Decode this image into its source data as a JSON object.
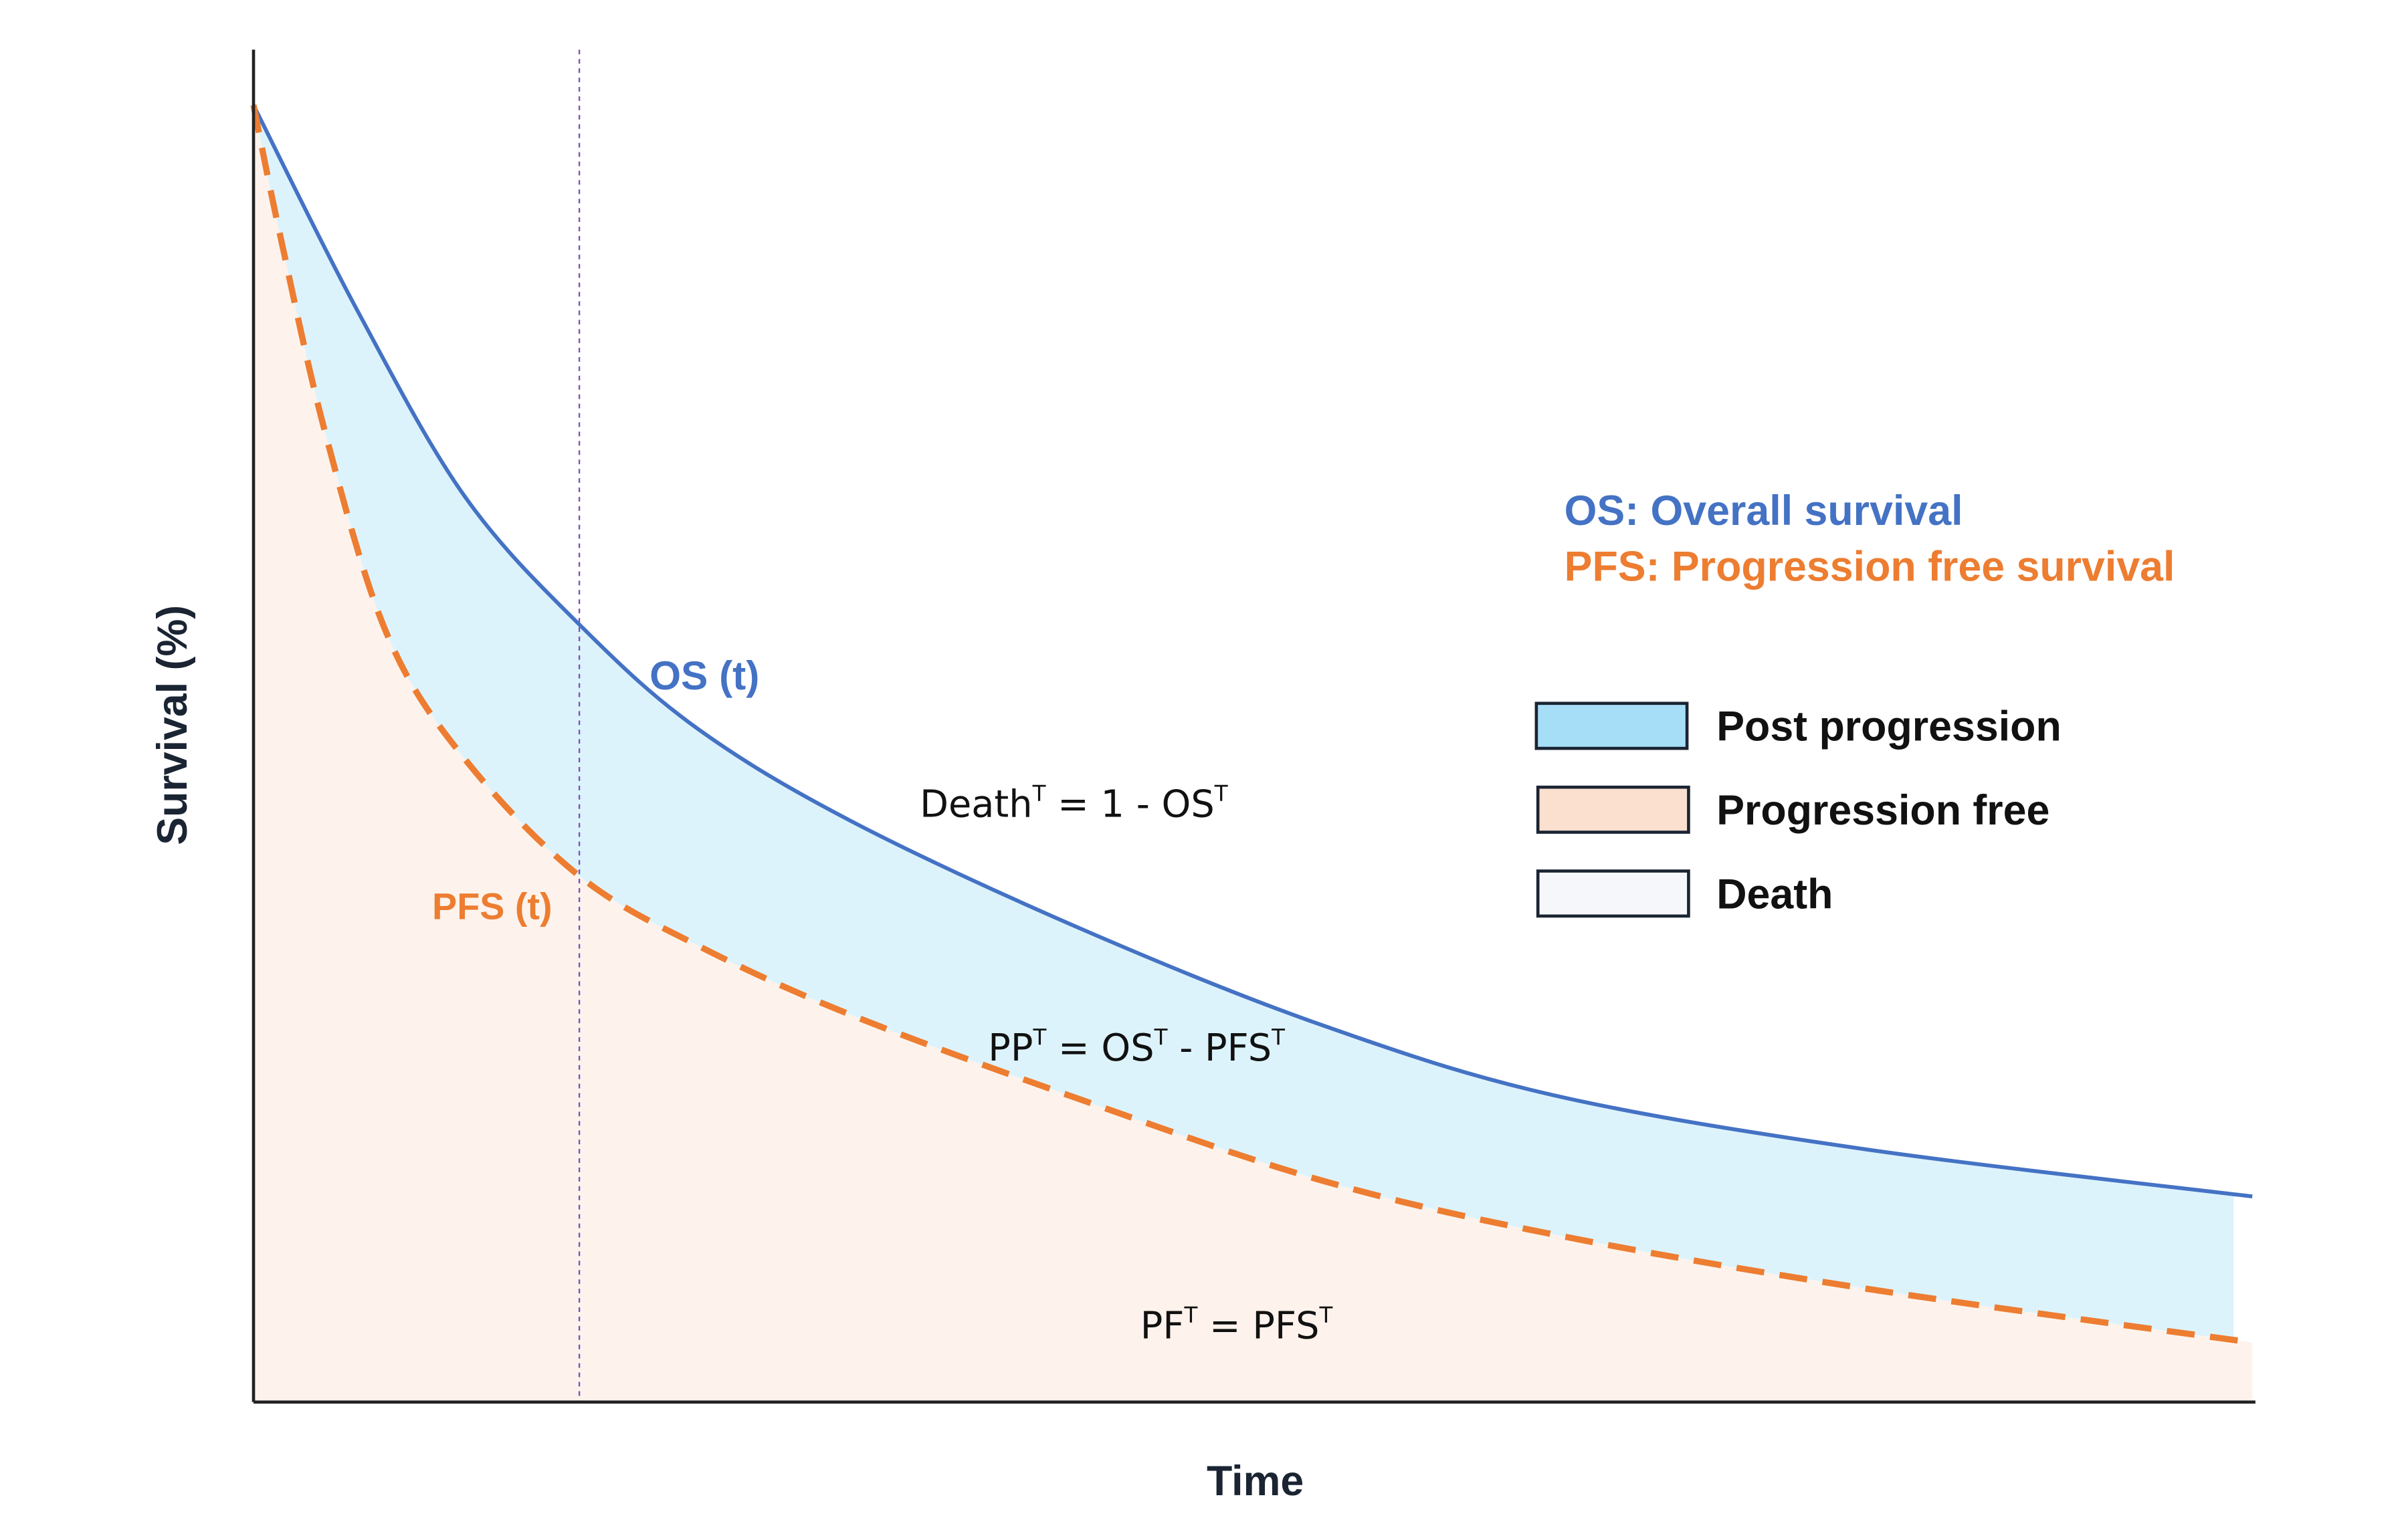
{
  "chart_data": {
    "type": "area",
    "xlabel": "Time",
    "ylabel": "Survival (%)",
    "xlim": [
      0,
      100
    ],
    "ylim": [
      0,
      100
    ],
    "grid": false,
    "marker_time": 16.3,
    "series": [
      {
        "name": "OS (t)",
        "style": "solid",
        "color": "#4472C4",
        "x": [
          0,
          5.2,
          10.6,
          16.5,
          22.3,
          30.1,
          41.7,
          53.4,
          65,
          80.6,
          100
        ],
        "y": [
          95.9,
          80.7,
          66.9,
          57.2,
          49.7,
          42.8,
          34.8,
          27.9,
          22.7,
          18.7,
          15.2
        ]
      },
      {
        "name": "PFS (t)",
        "style": "dashed",
        "color": "#ED7D31",
        "x": [
          0,
          1.3,
          3.6,
          6.7,
          10.6,
          16.3,
          22.3,
          30.1,
          41.7,
          53.4,
          65,
          80.6,
          100
        ],
        "y": [
          95.9,
          86.5,
          71.6,
          56.7,
          47.5,
          38.9,
          33.7,
          28.5,
          22.2,
          16.4,
          12.4,
          8.4,
          4.4
        ]
      }
    ],
    "definitions": {
      "os": "OS: Overall survival",
      "pfs": "PFS: Progression free survival"
    },
    "legend": {
      "placement": "right",
      "items": [
        {
          "label": "Post progression",
          "color": "#A6DEF7"
        },
        {
          "label": "Progression free",
          "color": "#FBE0CF"
        },
        {
          "label": "Death",
          "color": "#F5F7FA"
        }
      ]
    },
    "annotations": {
      "death": {
        "base": "Death",
        "sup1": "T",
        "rest": " = 1 - OS",
        "sup2": "T"
      },
      "pp": {
        "base": "PP",
        "sup1": "T",
        "mid": " = OS",
        "sup2": "T",
        "rest": " - PFS",
        "sup3": "T"
      },
      "pf": {
        "base": "PF",
        "sup1": "T",
        "rest": " = PFS",
        "sup2": "T"
      }
    },
    "fill_colors": {
      "post_progression": "#DDF3FC",
      "progression_free": "#FDF3EC"
    }
  }
}
